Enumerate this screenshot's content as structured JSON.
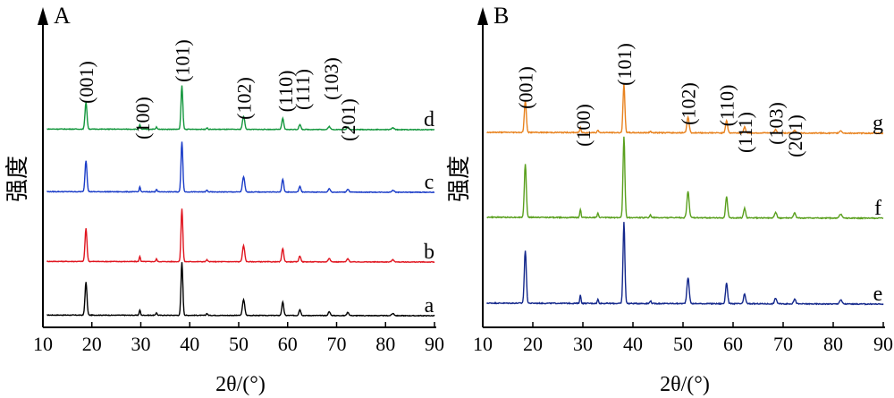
{
  "chart_data": [
    {
      "type": "line",
      "panel_label": "A",
      "xlabel": "2θ/(°)",
      "ylabel": "强度",
      "xlim": [
        10,
        90
      ],
      "xticks": [
        10,
        20,
        30,
        40,
        50,
        60,
        70,
        80,
        90
      ],
      "grid": false,
      "stacked_offset": true,
      "series": [
        {
          "name": "a",
          "color": "#000000",
          "baseline": 0,
          "scale": 1.0
        },
        {
          "name": "b",
          "color": "#e0141e",
          "baseline": 1,
          "scale": 1.0
        },
        {
          "name": "c",
          "color": "#1a3cc8",
          "baseline": 2,
          "scale": 0.95
        },
        {
          "name": "d",
          "color": "#12963c",
          "baseline": 3,
          "scale": 0.82
        }
      ],
      "peaks": [
        {
          "x": 18.8,
          "h": 0.62,
          "w": 0.28
        },
        {
          "x": 29.8,
          "h": 0.1,
          "w": 0.18
        },
        {
          "x": 33.2,
          "h": 0.05,
          "w": 0.18
        },
        {
          "x": 38.4,
          "h": 1.0,
          "w": 0.26
        },
        {
          "x": 43.5,
          "h": 0.035,
          "w": 0.2
        },
        {
          "x": 51.0,
          "h": 0.3,
          "w": 0.32
        },
        {
          "x": 59.0,
          "h": 0.25,
          "w": 0.28
        },
        {
          "x": 62.5,
          "h": 0.11,
          "w": 0.28
        },
        {
          "x": 68.5,
          "h": 0.07,
          "w": 0.3
        },
        {
          "x": 72.3,
          "h": 0.06,
          "w": 0.3
        },
        {
          "x": 81.5,
          "h": 0.04,
          "w": 0.35
        }
      ],
      "annotations": [
        {
          "text": "(001)",
          "x": 18.8
        },
        {
          "text": "(100)",
          "x": 30.3
        },
        {
          "text": "(101)",
          "x": 38.4
        },
        {
          "text": "(102)",
          "x": 51.0
        },
        {
          "text": "(110)",
          "x": 59.5
        },
        {
          "text": "(111)",
          "x": 63.0
        },
        {
          "text": "(103)",
          "x": 68.8
        },
        {
          "text": "(201)",
          "x": 72.3
        }
      ]
    },
    {
      "type": "line",
      "panel_label": "B",
      "xlabel": "2θ/(°)",
      "ylabel": "强度",
      "xlim": [
        10,
        90
      ],
      "xticks": [
        10,
        20,
        30,
        40,
        50,
        60,
        70,
        80,
        90
      ],
      "grid": false,
      "stacked_offset": true,
      "series": [
        {
          "name": "e",
          "color": "#14288c",
          "baseline": 0,
          "scale": 1.0
        },
        {
          "name": "f",
          "color": "#5aa01e",
          "baseline": 1,
          "scale": 1.0
        },
        {
          "name": "g",
          "color": "#e8821e",
          "baseline": 2,
          "scale": 0.6
        }
      ],
      "peaks": [
        {
          "x": 18.5,
          "h": 0.65,
          "w": 0.28
        },
        {
          "x": 29.5,
          "h": 0.1,
          "w": 0.18
        },
        {
          "x": 33.0,
          "h": 0.05,
          "w": 0.18
        },
        {
          "x": 38.2,
          "h": 1.0,
          "w": 0.26
        },
        {
          "x": 43.5,
          "h": 0.035,
          "w": 0.2
        },
        {
          "x": 51.0,
          "h": 0.32,
          "w": 0.32
        },
        {
          "x": 58.7,
          "h": 0.26,
          "w": 0.28
        },
        {
          "x": 62.3,
          "h": 0.12,
          "w": 0.28
        },
        {
          "x": 68.5,
          "h": 0.07,
          "w": 0.3
        },
        {
          "x": 72.3,
          "h": 0.06,
          "w": 0.3
        },
        {
          "x": 81.5,
          "h": 0.05,
          "w": 0.35
        }
      ],
      "annotations": [
        {
          "text": "(001)",
          "x": 18.5
        },
        {
          "text": "(100)",
          "x": 30.0
        },
        {
          "text": "(101)",
          "x": 38.2
        },
        {
          "text": "(102)",
          "x": 51.0
        },
        {
          "text": "(110)",
          "x": 58.7
        },
        {
          "text": "(111)",
          "x": 62.3
        },
        {
          "text": "(103)",
          "x": 68.5
        },
        {
          "text": "(201)",
          "x": 72.3
        }
      ]
    }
  ]
}
